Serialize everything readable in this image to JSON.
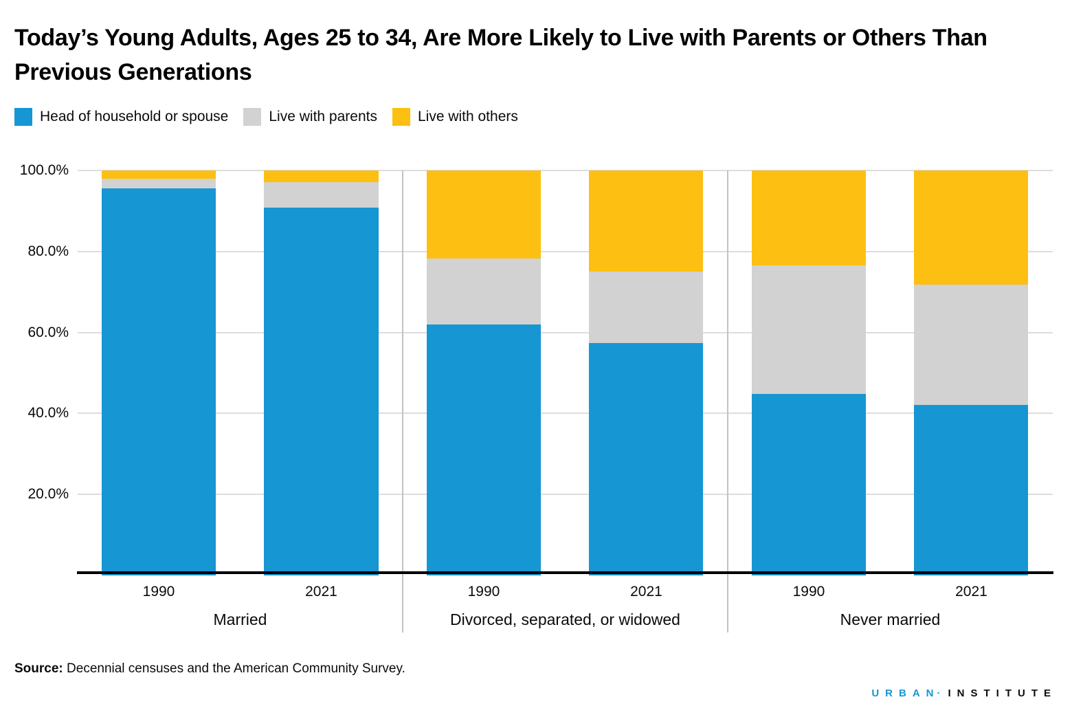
{
  "title": "Today’s Young Adults, Ages 25 to 34, Are More Likely to Live with Parents or Others Than Previous Generations",
  "legend": [
    {
      "label": "Head of household or spouse",
      "color": "#1696d2"
    },
    {
      "label": "Live with parents",
      "color": "#d2d2d2"
    },
    {
      "label": "Live with others",
      "color": "#fdbf11"
    }
  ],
  "chart_data": {
    "type": "bar",
    "stacked": true,
    "unit": "percent",
    "ylim": [
      0,
      100
    ],
    "grid": true,
    "legend_position": "top-left",
    "ytick_labels": [
      "100.0%",
      "80.0%",
      "60.0%",
      "40.0%",
      "20.0%"
    ],
    "series_names": [
      "Head of household or spouse",
      "Live with parents",
      "Live with others"
    ],
    "series_colors": [
      "#1696d2",
      "#d2d2d2",
      "#fdbf11"
    ],
    "groups": [
      {
        "label": "Married",
        "bars": [
          {
            "x": "1990",
            "values": [
              95.6,
              2.3,
              2.1
            ]
          },
          {
            "x": "2021",
            "values": [
              90.8,
              6.4,
              2.8
            ]
          }
        ]
      },
      {
        "label": "Divorced, separated, or widowed",
        "bars": [
          {
            "x": "1990",
            "values": [
              62.0,
              16.3,
              21.7
            ]
          },
          {
            "x": "2021",
            "values": [
              57.4,
              17.7,
              24.9
            ]
          }
        ]
      },
      {
        "label": "Never married",
        "bars": [
          {
            "x": "1990",
            "values": [
              44.9,
              31.6,
              23.5
            ]
          },
          {
            "x": "2021",
            "values": [
              42.1,
              29.7,
              28.2
            ]
          }
        ]
      }
    ]
  },
  "source": {
    "label": "Source:",
    "text": "Decennial censuses and the American Community Survey."
  },
  "logo": {
    "part1": "URBAN",
    "separator": "·",
    "part2": "INSTITUTE"
  }
}
